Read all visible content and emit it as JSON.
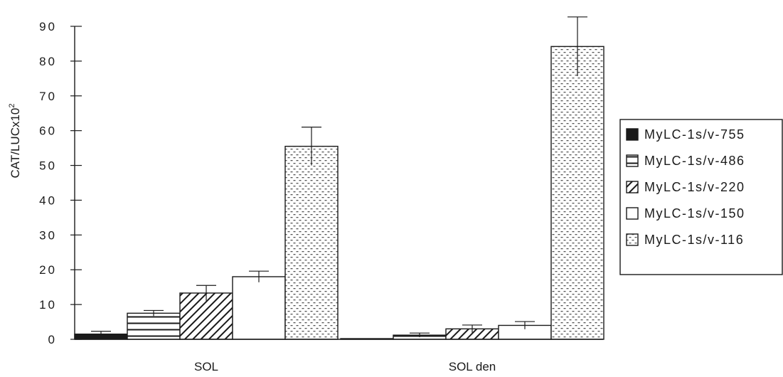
{
  "chart_data": {
    "type": "bar",
    "ylabel": "CAT/LUCx10",
    "ylabel_superscript": "2",
    "ylim": [
      0,
      90
    ],
    "yticks": [
      0,
      10,
      20,
      30,
      40,
      50,
      60,
      70,
      80,
      90
    ],
    "categories": [
      "SOL",
      "SOL den"
    ],
    "legend_position": "right",
    "grid": false,
    "series": [
      {
        "name": "MyLC-1s/v-755",
        "pattern": "solid",
        "values": [
          1.5,
          0.2
        ],
        "errors": [
          0.8,
          0
        ]
      },
      {
        "name": "MyLC-1s/v-486",
        "pattern": "horizontal-lines",
        "values": [
          7.5,
          1.2
        ],
        "errors": [
          0.8,
          0.6
        ]
      },
      {
        "name": "MyLC-1s/v-220",
        "pattern": "diagonal-lines",
        "values": [
          13.3,
          3.0
        ],
        "errors": [
          2.2,
          1.1
        ]
      },
      {
        "name": "MyLC-1s/v-150",
        "pattern": "empty",
        "values": [
          18.0,
          4.0
        ],
        "errors": [
          1.6,
          1.1
        ]
      },
      {
        "name": "MyLC-1s/v-116",
        "pattern": "dotted",
        "values": [
          55.5,
          84.2
        ],
        "errors": [
          5.5,
          8.5
        ]
      }
    ]
  }
}
